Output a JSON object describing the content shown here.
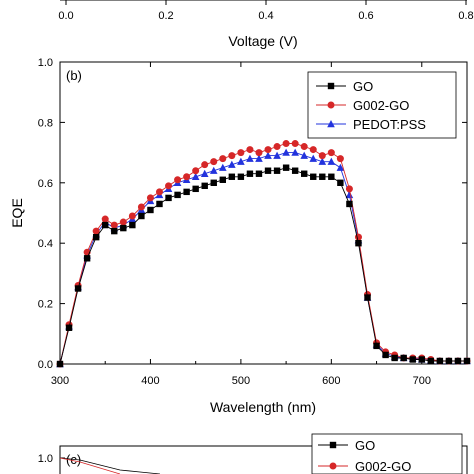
{
  "top_fragment": {
    "xlabel": "Voltage (V)",
    "ticks": [
      "0.0",
      "0.2",
      "0.4",
      "0.6",
      "0.8"
    ]
  },
  "chart_data": [
    {
      "type": "line",
      "panel_label": "(b)",
      "xlabel": "Wavelength (nm)",
      "ylabel": "EQE",
      "xlim": [
        300,
        750
      ],
      "ylim": [
        0.0,
        1.0
      ],
      "x_ticks": [
        300,
        400,
        500,
        600,
        700
      ],
      "y_ticks": [
        "0.0",
        "0.2",
        "0.4",
        "0.6",
        "0.8",
        "1.0"
      ],
      "legend_position": "top-right",
      "x": [
        300,
        310,
        320,
        330,
        340,
        350,
        360,
        370,
        380,
        390,
        400,
        410,
        420,
        430,
        440,
        450,
        460,
        470,
        480,
        490,
        500,
        510,
        520,
        530,
        540,
        550,
        560,
        570,
        580,
        590,
        600,
        610,
        620,
        630,
        640,
        650,
        660,
        670,
        680,
        690,
        700,
        710,
        720,
        730,
        740,
        750
      ],
      "series": [
        {
          "name": "GO",
          "color": "#000000",
          "marker": "square",
          "values": [
            0.0,
            0.12,
            0.25,
            0.35,
            0.42,
            0.46,
            0.44,
            0.45,
            0.46,
            0.49,
            0.51,
            0.53,
            0.55,
            0.56,
            0.57,
            0.58,
            0.59,
            0.6,
            0.61,
            0.62,
            0.62,
            0.63,
            0.63,
            0.64,
            0.64,
            0.65,
            0.64,
            0.63,
            0.62,
            0.62,
            0.62,
            0.6,
            0.53,
            0.4,
            0.22,
            0.06,
            0.03,
            0.02,
            0.02,
            0.015,
            0.015,
            0.01,
            0.01,
            0.01,
            0.01,
            0.01
          ]
        },
        {
          "name": "G002-GO",
          "color": "#d62728",
          "marker": "circle",
          "values": [
            0.0,
            0.13,
            0.26,
            0.37,
            0.44,
            0.48,
            0.46,
            0.47,
            0.49,
            0.52,
            0.55,
            0.57,
            0.59,
            0.61,
            0.62,
            0.64,
            0.66,
            0.67,
            0.68,
            0.69,
            0.7,
            0.71,
            0.7,
            0.71,
            0.72,
            0.73,
            0.73,
            0.72,
            0.71,
            0.69,
            0.7,
            0.68,
            0.58,
            0.42,
            0.23,
            0.07,
            0.04,
            0.03,
            0.02,
            0.02,
            0.02,
            0.015,
            0.01,
            0.01,
            0.01,
            0.01
          ]
        },
        {
          "name": "PEDOT:PSS",
          "color": "#2233dd",
          "marker": "triangle",
          "values": [
            0.0,
            0.125,
            0.255,
            0.36,
            0.43,
            0.47,
            0.45,
            0.46,
            0.48,
            0.51,
            0.54,
            0.56,
            0.58,
            0.6,
            0.61,
            0.62,
            0.63,
            0.64,
            0.65,
            0.66,
            0.67,
            0.68,
            0.68,
            0.69,
            0.69,
            0.7,
            0.7,
            0.69,
            0.68,
            0.67,
            0.67,
            0.65,
            0.56,
            0.41,
            0.22,
            0.065,
            0.035,
            0.025,
            0.02,
            0.018,
            0.015,
            0.012,
            0.01,
            0.01,
            0.01,
            0.01
          ]
        }
      ]
    }
  ],
  "bottom_fragment": {
    "panel_label": "(c)",
    "y_tick": "1.0",
    "legend": [
      "GO",
      "G002-GO"
    ]
  }
}
